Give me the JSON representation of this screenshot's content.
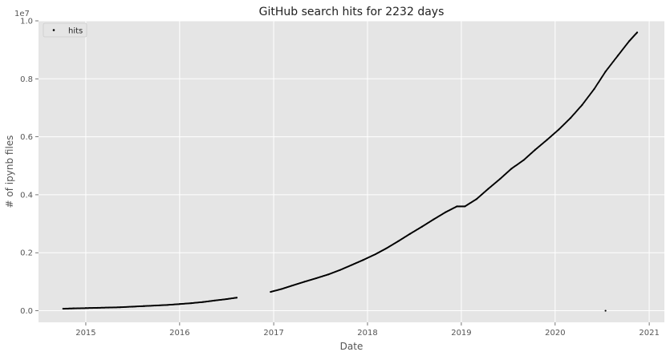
{
  "chart_data": {
    "type": "scatter",
    "title": "GitHub search hits for 2232 days",
    "xlabel": "Date",
    "ylabel": "# of ipynb files",
    "y_offset_label": "1e7",
    "legend": {
      "label": "hits",
      "position": "top-left"
    },
    "xlim": [
      "2014-07-01",
      "2021-03-01"
    ],
    "ylim": [
      -0.04,
      1.0
    ],
    "x_ticks": [
      "2015",
      "2016",
      "2017",
      "2018",
      "2019",
      "2020",
      "2021"
    ],
    "y_ticks": [
      "0.0",
      "0.2",
      "0.4",
      "0.6",
      "0.8",
      "1.0"
    ],
    "grid": true,
    "background": "#e5e5e5",
    "point_color": "#000000",
    "series": [
      {
        "name": "hits",
        "unit": "1e7 files",
        "points": [
          [
            "2014-10-05",
            0.007
          ],
          [
            "2014-11-15",
            0.008
          ],
          [
            "2015-01-01",
            0.009
          ],
          [
            "2015-02-15",
            0.01
          ],
          [
            "2015-04-01",
            0.011
          ],
          [
            "2015-05-15",
            0.012
          ],
          [
            "2015-07-01",
            0.014
          ],
          [
            "2015-08-15",
            0.016
          ],
          [
            "2015-10-01",
            0.018
          ],
          [
            "2015-11-15",
            0.02
          ],
          [
            "2016-01-01",
            0.023
          ],
          [
            "2016-02-15",
            0.026
          ],
          [
            "2016-04-01",
            0.03
          ],
          [
            "2016-05-15",
            0.035
          ],
          [
            "2016-07-01",
            0.04
          ],
          [
            "2016-08-10",
            0.045
          ],
          [
            "2016-12-20",
            0.065
          ],
          [
            "2017-02-01",
            0.075
          ],
          [
            "2017-03-15",
            0.087
          ],
          [
            "2017-05-01",
            0.1
          ],
          [
            "2017-06-15",
            0.112
          ],
          [
            "2017-08-01",
            0.125
          ],
          [
            "2017-09-15",
            0.14
          ],
          [
            "2017-11-01",
            0.158
          ],
          [
            "2017-12-15",
            0.175
          ],
          [
            "2018-02-01",
            0.195
          ],
          [
            "2018-03-15",
            0.215
          ],
          [
            "2018-05-01",
            0.24
          ],
          [
            "2018-06-15",
            0.265
          ],
          [
            "2018-08-01",
            0.29
          ],
          [
            "2018-09-15",
            0.315
          ],
          [
            "2018-11-01",
            0.34
          ],
          [
            "2018-12-15",
            0.36
          ],
          [
            "2019-01-15",
            0.36
          ],
          [
            "2019-03-01",
            0.385
          ],
          [
            "2019-04-15",
            0.42
          ],
          [
            "2019-06-01",
            0.455
          ],
          [
            "2019-07-15",
            0.49
          ],
          [
            "2019-09-01",
            0.52
          ],
          [
            "2019-10-15",
            0.555
          ],
          [
            "2019-12-01",
            0.59
          ],
          [
            "2020-01-15",
            0.625
          ],
          [
            "2020-03-01",
            0.665
          ],
          [
            "2020-04-15",
            0.71
          ],
          [
            "2020-06-01",
            0.765
          ],
          [
            "2020-07-15",
            0.825
          ],
          [
            "2020-09-01",
            0.88
          ],
          [
            "2020-10-15",
            0.93
          ],
          [
            "2020-11-15",
            0.96
          ],
          [
            "2020-07-15",
            0.0
          ]
        ]
      }
    ]
  }
}
